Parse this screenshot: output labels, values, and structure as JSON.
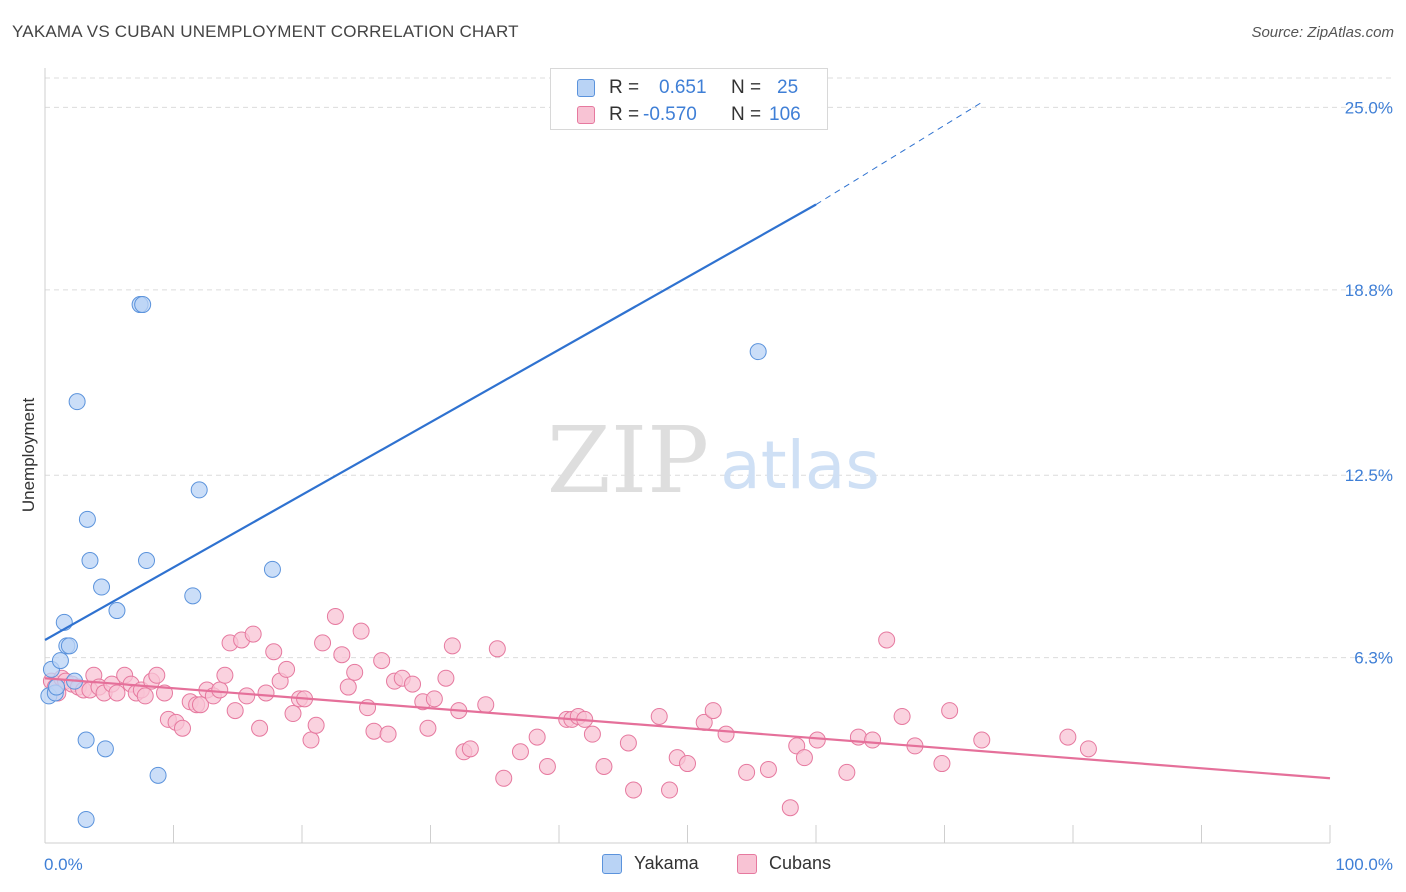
{
  "title": "YAKAMA VS CUBAN UNEMPLOYMENT CORRELATION CHART",
  "source": "Source: ZipAtlas.com",
  "watermark": {
    "zip": "ZIP",
    "atlas": "atlas"
  },
  "legend": {
    "rows": [
      {
        "r_label": "R =",
        "r_value": "0.651",
        "n_label": "N =",
        "n_value": "25"
      },
      {
        "r_label": "R =",
        "r_value": "-0.570",
        "n_label": "N =",
        "n_value": "106"
      }
    ]
  },
  "bottom_legend": {
    "yakama": "Yakama",
    "cubans": "Cubans"
  },
  "colors": {
    "yakama_fill": "#b9d3f5",
    "yakama_stroke": "#5b93dc",
    "yakama_line": "#2f72d0",
    "cubans_fill": "#f8c3d4",
    "cubans_stroke": "#e6799f",
    "cubans_line": "#e5709a",
    "axis_text": "#3f7fd6",
    "grid": "#dcdcdc"
  },
  "chart_data": {
    "type": "scatter",
    "title": "YAKAMA VS CUBAN UNEMPLOYMENT CORRELATION CHART",
    "xlabel": "",
    "ylabel": "Unemployment",
    "xlim": [
      0,
      100
    ],
    "ylim": [
      0,
      26
    ],
    "x_tick_labels": [
      "0.0%",
      "100.0%"
    ],
    "y_ticks": [
      6.3,
      12.5,
      18.8,
      25.0
    ],
    "y_tick_labels": [
      "6.3%",
      "12.5%",
      "18.8%",
      "25.0%"
    ],
    "grid": true,
    "legend_position": "top-center",
    "series": [
      {
        "name": "Yakama",
        "points": [
          [
            0.3,
            5.0
          ],
          [
            0.8,
            5.1
          ],
          [
            0.5,
            5.9
          ],
          [
            0.9,
            5.3
          ],
          [
            1.2,
            6.2
          ],
          [
            1.5,
            7.5
          ],
          [
            1.7,
            6.7
          ],
          [
            1.9,
            6.7
          ],
          [
            2.3,
            5.5
          ],
          [
            2.5,
            15.0
          ],
          [
            3.2,
            0.8
          ],
          [
            3.2,
            3.5
          ],
          [
            3.3,
            11.0
          ],
          [
            3.5,
            9.6
          ],
          [
            4.4,
            8.7
          ],
          [
            4.7,
            3.2
          ],
          [
            5.6,
            7.9
          ],
          [
            7.4,
            18.3
          ],
          [
            7.6,
            18.3
          ],
          [
            7.9,
            9.6
          ],
          [
            8.8,
            2.3
          ],
          [
            11.5,
            8.4
          ],
          [
            12.0,
            12.0
          ],
          [
            17.7,
            9.3
          ],
          [
            55.5,
            16.7
          ]
        ],
        "trend": {
          "x": [
            0,
            60
          ],
          "y": [
            6.9,
            21.7
          ],
          "dashed_extension": {
            "x": [
              60,
              73
            ],
            "y": [
              21.7,
              25.2
            ]
          }
        }
      },
      {
        "name": "Cubans",
        "points": [
          [
            0.5,
            5.5
          ],
          [
            0.8,
            5.3
          ],
          [
            1.0,
            5.1
          ],
          [
            1.3,
            5.6
          ],
          [
            1.6,
            5.5
          ],
          [
            2.1,
            5.4
          ],
          [
            2.6,
            5.3
          ],
          [
            3.0,
            5.2
          ],
          [
            3.5,
            5.2
          ],
          [
            3.8,
            5.7
          ],
          [
            4.2,
            5.3
          ],
          [
            4.6,
            5.1
          ],
          [
            5.2,
            5.4
          ],
          [
            5.6,
            5.1
          ],
          [
            6.2,
            5.7
          ],
          [
            6.7,
            5.4
          ],
          [
            7.1,
            5.1
          ],
          [
            7.5,
            5.2
          ],
          [
            7.8,
            5.0
          ],
          [
            8.3,
            5.5
          ],
          [
            8.7,
            5.7
          ],
          [
            9.3,
            5.1
          ],
          [
            9.6,
            4.2
          ],
          [
            10.2,
            4.1
          ],
          [
            10.7,
            3.9
          ],
          [
            11.3,
            4.8
          ],
          [
            11.8,
            4.7
          ],
          [
            12.1,
            4.7
          ],
          [
            12.6,
            5.2
          ],
          [
            13.1,
            5.0
          ],
          [
            13.6,
            5.2
          ],
          [
            14.0,
            5.7
          ],
          [
            14.4,
            6.8
          ],
          [
            14.8,
            4.5
          ],
          [
            15.3,
            6.9
          ],
          [
            15.7,
            5.0
          ],
          [
            16.2,
            7.1
          ],
          [
            16.7,
            3.9
          ],
          [
            17.2,
            5.1
          ],
          [
            17.8,
            6.5
          ],
          [
            18.3,
            5.5
          ],
          [
            18.8,
            5.9
          ],
          [
            19.3,
            4.4
          ],
          [
            19.8,
            4.9
          ],
          [
            20.2,
            4.9
          ],
          [
            20.7,
            3.5
          ],
          [
            21.1,
            4.0
          ],
          [
            21.6,
            6.8
          ],
          [
            22.6,
            7.7
          ],
          [
            23.1,
            6.4
          ],
          [
            23.6,
            5.3
          ],
          [
            24.1,
            5.8
          ],
          [
            24.6,
            7.2
          ],
          [
            25.1,
            4.6
          ],
          [
            25.6,
            3.8
          ],
          [
            26.2,
            6.2
          ],
          [
            26.7,
            3.7
          ],
          [
            27.2,
            5.5
          ],
          [
            27.8,
            5.6
          ],
          [
            28.6,
            5.4
          ],
          [
            29.4,
            4.8
          ],
          [
            29.8,
            3.9
          ],
          [
            30.3,
            4.9
          ],
          [
            31.2,
            5.6
          ],
          [
            31.7,
            6.7
          ],
          [
            32.2,
            4.5
          ],
          [
            32.6,
            3.1
          ],
          [
            33.1,
            3.2
          ],
          [
            34.3,
            4.7
          ],
          [
            35.2,
            6.6
          ],
          [
            35.7,
            2.2
          ],
          [
            37.0,
            3.1
          ],
          [
            38.3,
            3.6
          ],
          [
            39.1,
            2.6
          ],
          [
            40.6,
            4.2
          ],
          [
            41.0,
            4.2
          ],
          [
            41.5,
            4.3
          ],
          [
            42.0,
            4.2
          ],
          [
            42.6,
            3.7
          ],
          [
            43.5,
            2.6
          ],
          [
            45.4,
            3.4
          ],
          [
            45.8,
            1.8
          ],
          [
            47.8,
            4.3
          ],
          [
            48.6,
            1.8
          ],
          [
            49.2,
            2.9
          ],
          [
            50.0,
            2.7
          ],
          [
            51.3,
            4.1
          ],
          [
            52.0,
            4.5
          ],
          [
            53.0,
            3.7
          ],
          [
            54.6,
            2.4
          ],
          [
            56.3,
            2.5
          ],
          [
            58.0,
            1.2
          ],
          [
            58.5,
            3.3
          ],
          [
            59.1,
            2.9
          ],
          [
            60.1,
            3.5
          ],
          [
            62.4,
            2.4
          ],
          [
            63.3,
            3.6
          ],
          [
            64.4,
            3.5
          ],
          [
            65.5,
            6.9
          ],
          [
            66.7,
            4.3
          ],
          [
            67.7,
            3.3
          ],
          [
            69.8,
            2.7
          ],
          [
            70.4,
            4.5
          ],
          [
            72.9,
            3.5
          ],
          [
            79.6,
            3.6
          ],
          [
            81.2,
            3.2
          ]
        ],
        "trend": {
          "x": [
            0,
            100
          ],
          "y": [
            5.6,
            2.2
          ]
        }
      }
    ]
  }
}
